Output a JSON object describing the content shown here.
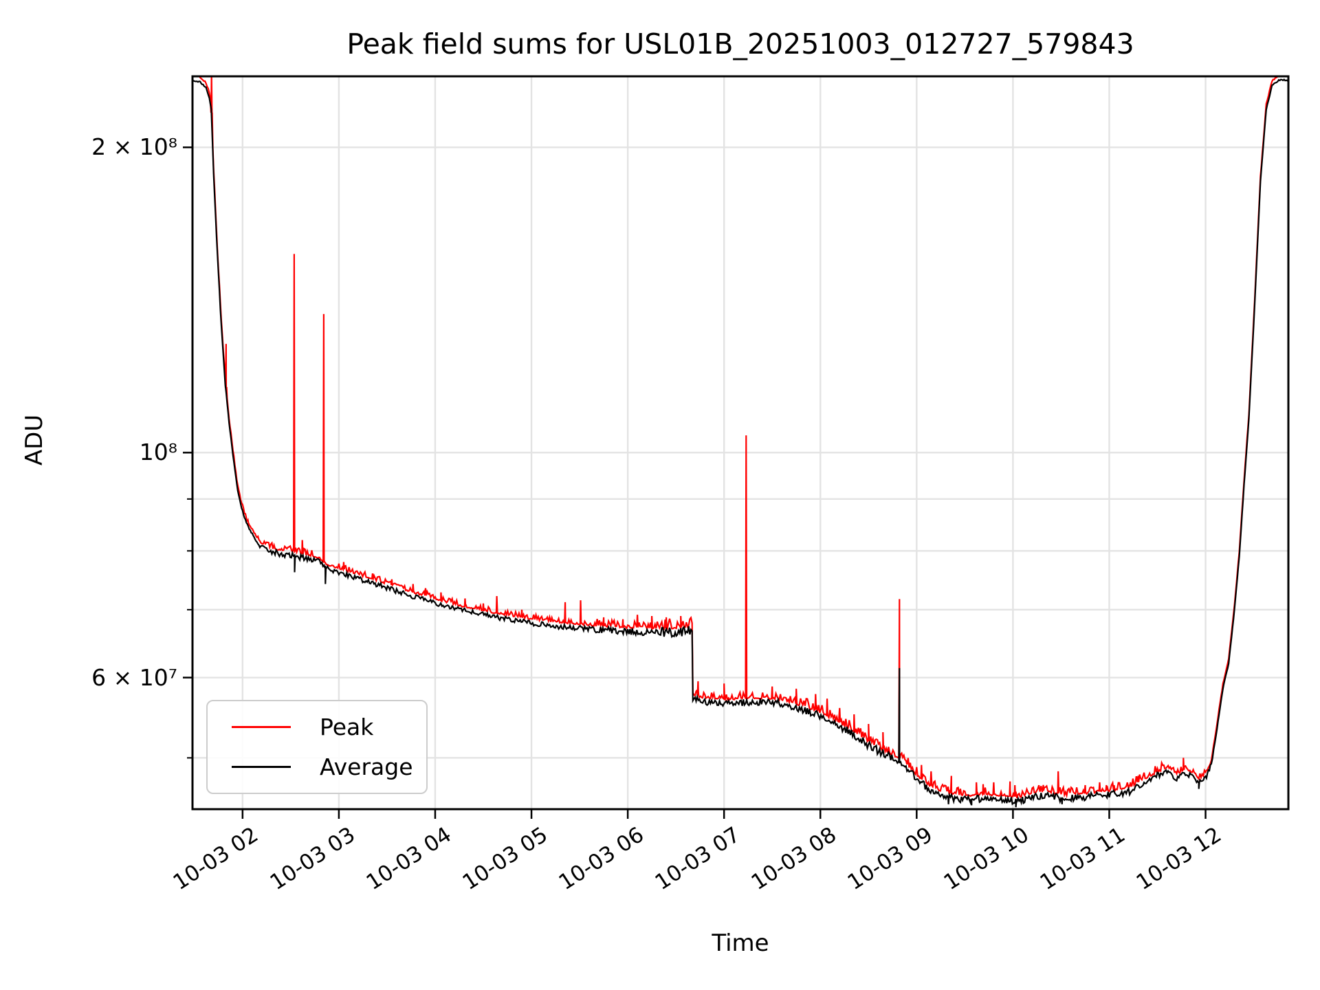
{
  "chart_data": {
    "type": "line",
    "title": "Peak field sums for USL01B_20251003_012727_579843",
    "xlabel": "Time",
    "ylabel": "ADU",
    "grid": true,
    "legend_position": "lower left",
    "colors": {
      "peak": "#ff0000",
      "average": "#000000",
      "grid": "#e3e3e3",
      "frame": "#000000"
    },
    "x_axis": {
      "unit": "hours on 2025-10-03",
      "min": 1.48,
      "max": 12.86,
      "ticks": [
        {
          "t": 2,
          "label": "10-03 02"
        },
        {
          "t": 3,
          "label": "10-03 03"
        },
        {
          "t": 4,
          "label": "10-03 04"
        },
        {
          "t": 5,
          "label": "10-03 05"
        },
        {
          "t": 6,
          "label": "10-03 06"
        },
        {
          "t": 7,
          "label": "10-03 07"
        },
        {
          "t": 8,
          "label": "10-03 08"
        },
        {
          "t": 9,
          "label": "10-03 09"
        },
        {
          "t": 10,
          "label": "10-03 10"
        },
        {
          "t": 11,
          "label": "10-03 11"
        },
        {
          "t": 12,
          "label": "10-03 12"
        }
      ]
    },
    "y_axis": {
      "scale": "log",
      "min": 44500000.0,
      "max": 235000000.0,
      "labeled_ticks": [
        {
          "v": 200000000.0,
          "label": "2 × 10⁸"
        },
        {
          "v": 100000000.0,
          "label": "10⁸"
        },
        {
          "v": 60000000.0,
          "label": "6 × 10⁷"
        }
      ],
      "minor_ticks": [
        90000000.0,
        80000000.0,
        70000000.0,
        50000000.0
      ],
      "gridline_values": [
        200000000.0,
        100000000.0,
        90000000.0,
        80000000.0,
        70000000.0,
        60000000.0,
        50000000.0
      ]
    },
    "legend": {
      "entries": [
        {
          "label": "Peak",
          "color": "#ff0000"
        },
        {
          "label": "Average",
          "color": "#000000"
        }
      ]
    },
    "series": {
      "average": {
        "name": "Average",
        "color": "#000000",
        "anchors": [
          [
            1.48,
            233000000.0
          ],
          [
            1.56,
            232000000.0
          ],
          [
            1.62,
            229000000.0
          ],
          [
            1.655,
            224000000.0
          ],
          [
            1.675,
            218000000.0
          ],
          [
            1.7,
            188000000.0
          ],
          [
            1.74,
            156000000.0
          ],
          [
            1.78,
            133000000.0
          ],
          [
            1.82,
            117000000.0
          ],
          [
            1.86,
            107000000.0
          ],
          [
            1.9,
            99500000.0
          ],
          [
            1.94,
            93000000.0
          ],
          [
            1.98,
            89000000.0
          ],
          [
            2.02,
            86200000.0
          ],
          [
            2.07,
            84000000.0
          ],
          [
            2.13,
            82200000.0
          ],
          [
            2.19,
            80800000.0
          ],
          [
            2.26,
            80000000.0
          ],
          [
            2.36,
            79600000.0
          ],
          [
            2.46,
            79300000.0
          ],
          [
            2.54,
            79100000.0
          ],
          [
            2.66,
            78600000.0
          ],
          [
            2.8,
            78000000.0
          ],
          [
            2.87,
            76800000.0
          ],
          [
            3.0,
            76200000.0
          ],
          [
            3.2,
            75100000.0
          ],
          [
            3.4,
            74100000.0
          ],
          [
            3.6,
            73000000.0
          ],
          [
            3.8,
            72000000.0
          ],
          [
            4.0,
            71100000.0
          ],
          [
            4.2,
            70200000.0
          ],
          [
            4.4,
            69500000.0
          ],
          [
            4.6,
            68900000.0
          ],
          [
            4.8,
            68400000.0
          ],
          [
            5.0,
            67900000.0
          ],
          [
            5.2,
            67500000.0
          ],
          [
            5.4,
            67200000.0
          ],
          [
            5.6,
            67000000.0
          ],
          [
            5.8,
            66800000.0
          ],
          [
            6.0,
            66600000.0
          ],
          [
            6.2,
            66500000.0
          ],
          [
            6.4,
            66500000.0
          ],
          [
            6.55,
            66600000.0
          ],
          [
            6.668,
            66700000.0
          ],
          [
            6.676,
            57200000.0
          ],
          [
            6.8,
            56800000.0
          ],
          [
            7.0,
            56600000.0
          ],
          [
            7.2,
            56700000.0
          ],
          [
            7.4,
            56800000.0
          ],
          [
            7.55,
            56700000.0
          ],
          [
            7.7,
            56200000.0
          ],
          [
            7.9,
            55500000.0
          ],
          [
            8.1,
            54400000.0
          ],
          [
            8.3,
            53000000.0
          ],
          [
            8.5,
            51500000.0
          ],
          [
            8.65,
            50500000.0
          ],
          [
            8.8,
            49700000.0
          ],
          [
            8.9,
            48800000.0
          ],
          [
            9.0,
            47700000.0
          ],
          [
            9.1,
            46800000.0
          ],
          [
            9.2,
            46200000.0
          ],
          [
            9.35,
            45700000.0
          ],
          [
            9.5,
            45500000.0
          ],
          [
            9.7,
            45600000.0
          ],
          [
            9.9,
            45500000.0
          ],
          [
            10.03,
            45300000.0
          ],
          [
            10.2,
            45700000.0
          ],
          [
            10.35,
            46000000.0
          ],
          [
            10.5,
            45600000.0
          ],
          [
            10.65,
            45600000.0
          ],
          [
            10.8,
            45800000.0
          ],
          [
            11.0,
            46000000.0
          ],
          [
            11.2,
            46300000.0
          ],
          [
            11.35,
            47200000.0
          ],
          [
            11.5,
            48000000.0
          ],
          [
            11.6,
            48500000.0
          ],
          [
            11.7,
            47700000.0
          ],
          [
            11.78,
            48200000.0
          ],
          [
            11.86,
            48000000.0
          ],
          [
            11.93,
            47300000.0
          ],
          [
            12.0,
            47700000.0
          ],
          [
            12.06,
            49200000.0
          ],
          [
            12.12,
            53500000.0
          ],
          [
            12.18,
            58500000.0
          ],
          [
            12.24,
            62000000.0
          ],
          [
            12.3,
            70000000.0
          ],
          [
            12.35,
            79000000.0
          ],
          [
            12.4,
            93000000.0
          ],
          [
            12.45,
            108000000.0
          ],
          [
            12.51,
            140000000.0
          ],
          [
            12.57,
            185000000.0
          ],
          [
            12.63,
            218000000.0
          ],
          [
            12.69,
            230000000.0
          ],
          [
            12.76,
            233000000.0
          ],
          [
            12.86,
            233000000.0
          ]
        ],
        "spikes": [
          [
            8.821,
            61300000.0
          ]
        ],
        "dips": [
          [
            2.54,
            76200000.0
          ],
          [
            2.86,
            74200000.0
          ],
          [
            9.33,
            45000000.0
          ],
          [
            9.57,
            44900000.0
          ],
          [
            10.03,
            44700000.0
          ],
          [
            10.51,
            45000000.0
          ],
          [
            11.93,
            46600000.0
          ]
        ]
      },
      "peak": {
        "name": "Peak",
        "color": "#ff0000",
        "offset_log": 0.0045,
        "spikes": [
          [
            1.678,
            236000000.0
          ],
          [
            1.829,
            128000000.0
          ],
          [
            2.05,
            85500000.0
          ],
          [
            2.536,
            157000000.0
          ],
          [
            2.62,
            82000000.0
          ],
          [
            2.843,
            137000000.0
          ],
          [
            3.05,
            78000000.0
          ],
          [
            3.35,
            76000000.0
          ],
          [
            3.55,
            75000000.0
          ],
          [
            3.77,
            74200000.0
          ],
          [
            3.9,
            73500000.0
          ],
          [
            4.06,
            72800000.0
          ],
          [
            4.31,
            71800000.0
          ],
          [
            4.5,
            71000000.0
          ],
          [
            4.64,
            72200000.0
          ],
          [
            4.9,
            70000000.0
          ],
          [
            5.35,
            71200000.0
          ],
          [
            5.51,
            71500000.0
          ],
          [
            5.75,
            68800000.0
          ],
          [
            5.95,
            68500000.0
          ],
          [
            6.1,
            69200000.0
          ],
          [
            6.25,
            69000000.0
          ],
          [
            6.4,
            68800000.0
          ],
          [
            6.55,
            69000000.0
          ],
          [
            6.73,
            59500000.0
          ],
          [
            7.0,
            59200000.0
          ],
          [
            7.229,
            104000000.0
          ],
          [
            7.5,
            58800000.0
          ],
          [
            7.75,
            58500000.0
          ],
          [
            7.95,
            57800000.0
          ],
          [
            8.07,
            57200000.0
          ],
          [
            8.2,
            56000000.0
          ],
          [
            8.35,
            55200000.0
          ],
          [
            8.5,
            54000000.0
          ],
          [
            8.65,
            53000000.0
          ],
          [
            8.821,
            71700000.0
          ],
          [
            9.05,
            49200000.0
          ],
          [
            9.15,
            48500000.0
          ],
          [
            9.36,
            48000000.0
          ],
          [
            9.62,
            47300000.0
          ],
          [
            9.69,
            47100000.0
          ],
          [
            9.8,
            47300000.0
          ],
          [
            9.97,
            47400000.0
          ],
          [
            10.02,
            47000000.0
          ],
          [
            10.31,
            46600000.0
          ],
          [
            10.47,
            48500000.0
          ],
          [
            10.75,
            47000000.0
          ],
          [
            10.9,
            47300000.0
          ],
          [
            10.97,
            47000000.0
          ],
          [
            11.05,
            47000000.0
          ],
          [
            11.22,
            47300000.0
          ],
          [
            11.3,
            48000000.0
          ],
          [
            11.77,
            50000000.0
          ]
        ]
      }
    },
    "noise_bands": [
      [
        1.48,
        1.695,
        0.0012
      ],
      [
        1.695,
        2.16,
        0.002
      ],
      [
        2.16,
        2.95,
        0.0055
      ],
      [
        2.95,
        5.5,
        0.0045
      ],
      [
        5.5,
        6.35,
        0.006
      ],
      [
        6.35,
        6.672,
        0.009
      ],
      [
        6.672,
        7.85,
        0.006
      ],
      [
        7.85,
        9.05,
        0.0075
      ],
      [
        9.05,
        11.55,
        0.0065
      ],
      [
        11.55,
        12.08,
        0.0045
      ],
      [
        12.08,
        12.86,
        0.0012
      ]
    ]
  }
}
